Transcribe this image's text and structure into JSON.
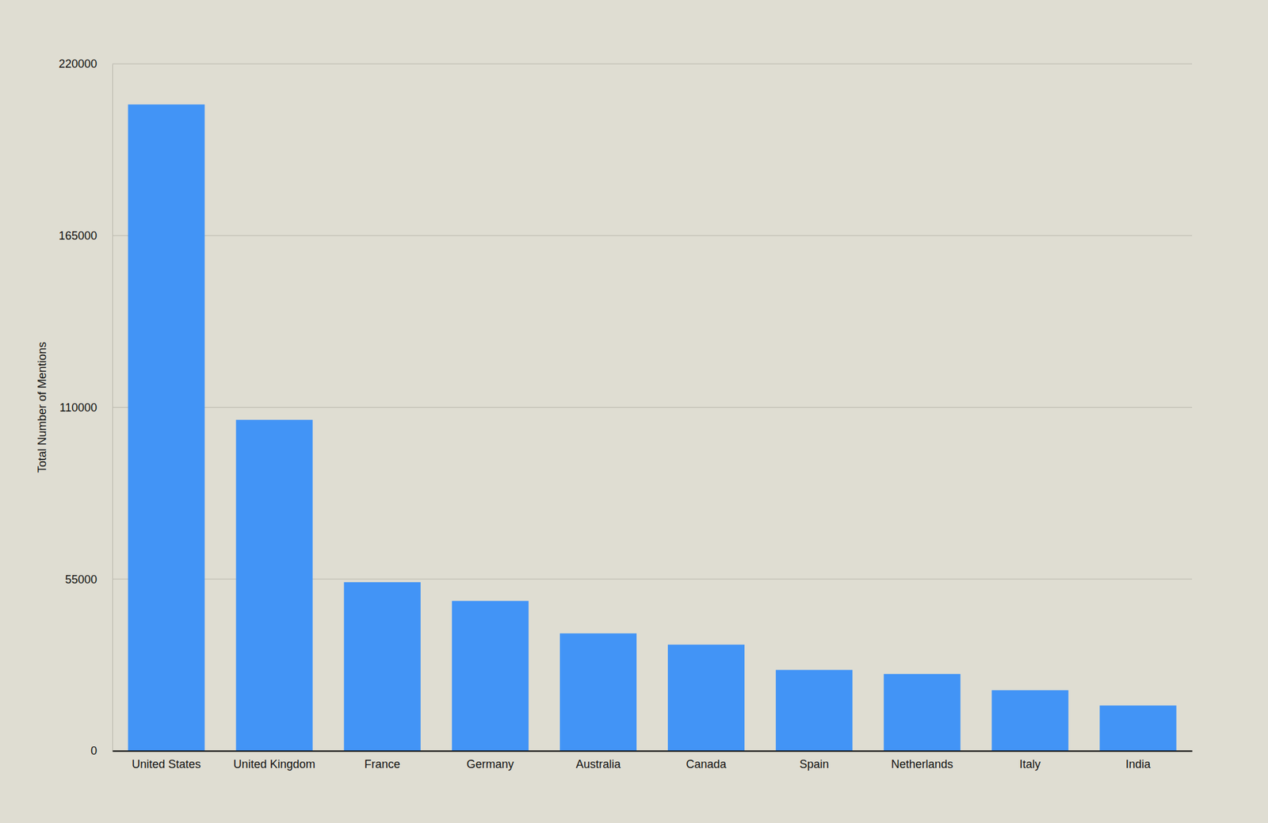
{
  "chart_data": {
    "type": "bar",
    "y_label": "Total Number of Mentions",
    "categories": [
      "United States",
      "United Kingdom",
      "France",
      "Germany",
      "Australia",
      "Canada",
      "Spain",
      "Netherlands",
      "Italy",
      "India"
    ],
    "values": [
      207000,
      106000,
      54000,
      48000,
      37600,
      34000,
      25900,
      24600,
      19400,
      14500
    ],
    "color": "#4294f6",
    "ylim": [
      0,
      220000
    ],
    "yticks": [
      0,
      55000,
      110000,
      165000,
      220000
    ],
    "grid": true
  }
}
